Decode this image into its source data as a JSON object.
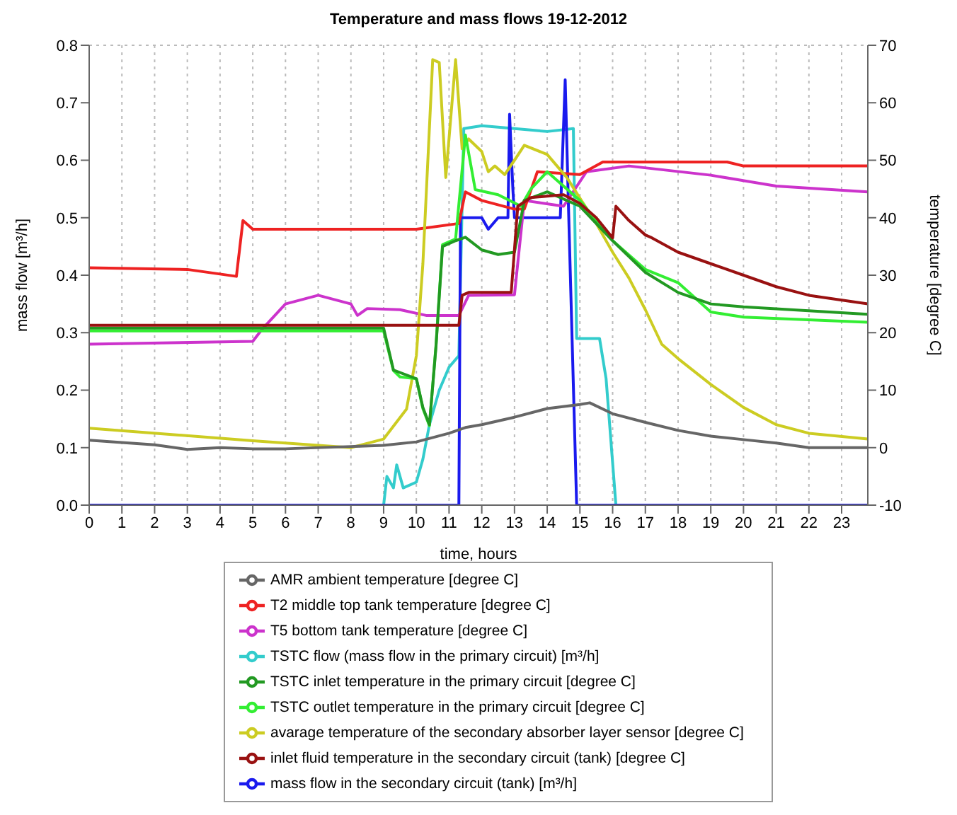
{
  "chart_data": {
    "type": "line",
    "title": "Temperature and mass flows 19-12-2012",
    "xlabel": "time, hours",
    "ylabel": "mass flow [m³/h]",
    "y2label": "temperature [degree C]",
    "xlim": [
      0,
      23.8
    ],
    "xticks": [
      0,
      1,
      2,
      3,
      4,
      5,
      6,
      7,
      8,
      9,
      10,
      11,
      12,
      13,
      14,
      15,
      16,
      17,
      18,
      19,
      20,
      21,
      22,
      23
    ],
    "ylim": [
      0,
      0.8
    ],
    "yticks": [
      {
        "value": 0,
        "label": "0.0"
      },
      0.1,
      0.2,
      0.3,
      0.4,
      0.5,
      0.6,
      0.7,
      0.8
    ],
    "y2lim": [
      -10,
      70
    ],
    "y2ticks": [
      -10,
      0,
      10,
      20,
      30,
      40,
      50,
      60,
      70
    ],
    "grid": true,
    "legend": "bottom",
    "series": [
      {
        "name": "TSTC flow (mass flow in the primary circuit) [m³/h]",
        "color": "#33cccc",
        "axis": "y",
        "x": [
          0,
          9,
          9.1,
          9.3,
          9.4,
          9.6,
          10,
          10.2,
          10.4,
          10.7,
          11,
          11.3,
          11.45,
          12,
          13,
          14,
          14.8,
          14.9,
          15.6,
          15.8,
          16.1,
          23.8
        ],
        "values": [
          0,
          0,
          0.05,
          0.03,
          0.07,
          0.03,
          0.04,
          0.08,
          0.14,
          0.2,
          0.24,
          0.26,
          0.655,
          0.66,
          0.655,
          0.65,
          0.655,
          0.29,
          0.29,
          0.22,
          0,
          0
        ]
      },
      {
        "name": "mass flow in the secondary circuit (tank) [m³/h]",
        "color": "#1a1aee",
        "axis": "y",
        "x": [
          0,
          11.3,
          11.35,
          12,
          12.2,
          12.5,
          12.8,
          12.85,
          12.95,
          13,
          14.4,
          14.55,
          14.65,
          14.9,
          23.8
        ],
        "values": [
          0,
          0,
          0.5,
          0.5,
          0.48,
          0.5,
          0.5,
          0.68,
          0.55,
          0.5,
          0.5,
          0.74,
          0.52,
          0,
          0
        ]
      },
      {
        "name": "T5 bottom tank temperature [degree C]",
        "color": "#cc33cc",
        "axis": "y2",
        "x": [
          0,
          5,
          5.3,
          6,
          7,
          8,
          8.2,
          8.5,
          9.5,
          10.3,
          11.3,
          11.6,
          13,
          13.3,
          14.5,
          15.2,
          16.5,
          19,
          21,
          23.8
        ],
        "values": [
          18,
          18.5,
          20.7,
          25,
          26.5,
          25,
          23,
          24.2,
          24,
          23,
          23,
          26.5,
          26.6,
          43,
          42,
          48,
          49,
          47.4,
          45.5,
          44.5
        ]
      },
      {
        "name": "T2 middle top tank temperature [degree C]",
        "color": "#ee2222",
        "axis": "y2",
        "x": [
          0,
          3,
          4.5,
          4.7,
          5,
          10,
          11.3,
          11.5,
          12,
          13,
          13.3,
          13.7,
          15,
          15.7,
          19.5,
          20,
          23.8
        ],
        "values": [
          31.3,
          31,
          29.8,
          39.5,
          38,
          38,
          39,
          44.5,
          43,
          41.5,
          41.5,
          48,
          47.5,
          49.7,
          49.7,
          49,
          49
        ]
      },
      {
        "name": "avarage temperature of the secondary absorber layer sensor [degree C]",
        "color": "#cccc22",
        "axis": "y2",
        "x": [
          0,
          5,
          8,
          9,
          9.7,
          10,
          10.2,
          10.5,
          10.7,
          10.9,
          11.2,
          11.4,
          11.6,
          12,
          12.2,
          12.4,
          12.7,
          13,
          13.3,
          14,
          14.6,
          15,
          15.5,
          16,
          16.5,
          17,
          17.5,
          18,
          19,
          20,
          21,
          22,
          23.8
        ],
        "values": [
          3.4,
          1.2,
          0,
          1.5,
          6.7,
          16,
          32,
          67.5,
          67,
          47,
          67.5,
          52,
          53.7,
          51.5,
          48,
          49,
          47.5,
          50,
          52.6,
          51,
          47,
          43.4,
          39,
          34,
          29.5,
          24,
          18,
          15.5,
          11,
          7,
          4,
          2.5,
          1.5
        ]
      },
      {
        "name": "TSTC outlet temperature in the primary circuit [degree C]",
        "color": "#33ee33",
        "axis": "y2",
        "x": [
          0,
          9,
          9.3,
          9.5,
          10,
          10.2,
          10.4,
          10.6,
          10.8,
          11.2,
          11.5,
          11.8,
          12.5,
          13.2,
          13.5,
          14,
          15,
          16,
          17,
          18,
          19,
          20,
          23.8
        ],
        "values": [
          20.3,
          20.3,
          13.4,
          12.3,
          12,
          6.8,
          3.8,
          17.8,
          35.3,
          36.3,
          54.4,
          44.9,
          44,
          42,
          45,
          48,
          43,
          36,
          31,
          28.7,
          23.6,
          22.7,
          21.8
        ]
      },
      {
        "name": "TSTC inlet temperature in the primary circuit [degree C]",
        "color": "#229922",
        "axis": "y2",
        "x": [
          0,
          9,
          9.3,
          10,
          10.2,
          10.4,
          10.6,
          10.8,
          11.2,
          11.5,
          12,
          12.5,
          13,
          13.3,
          14,
          15,
          16,
          17,
          18,
          19,
          20,
          23.8
        ],
        "values": [
          20.8,
          20.8,
          13.5,
          12,
          7,
          4,
          17.5,
          35,
          36,
          36.6,
          34.4,
          33.6,
          34,
          43,
          44.5,
          42,
          36,
          30.5,
          27,
          25,
          24.5,
          23.2
        ]
      },
      {
        "name": "AMR ambient temperature [degree C]",
        "color": "#666666",
        "axis": "y2",
        "x": [
          0,
          2,
          3,
          4,
          5,
          6,
          8,
          9,
          10,
          11,
          11.5,
          12,
          13,
          14,
          15,
          15.3,
          16,
          17,
          18,
          19,
          20,
          21,
          22,
          23.8
        ],
        "values": [
          1.3,
          0.5,
          -0.3,
          0,
          -0.2,
          -0.2,
          0.2,
          0.4,
          1,
          2.5,
          3.5,
          4,
          5.3,
          6.8,
          7.5,
          7.8,
          5.9,
          4.4,
          3,
          2,
          1.4,
          0.8,
          0,
          0
        ]
      },
      {
        "name": "inlet fluid temperature in the secondary circuit (tank) [degree C]",
        "color": "#991111",
        "axis": "y2",
        "x": [
          0,
          11.3,
          11.4,
          11.6,
          12.9,
          13.1,
          13.5,
          14.5,
          15,
          15.5,
          16,
          16.1,
          16.5,
          17,
          17.2,
          18,
          19,
          20,
          21,
          22,
          23.8
        ],
        "values": [
          21.3,
          21.3,
          26.5,
          27,
          27,
          42,
          43.5,
          44,
          42.5,
          40,
          36.5,
          42,
          39.5,
          37,
          36.5,
          34,
          32,
          30,
          28,
          26.5,
          25
        ]
      }
    ]
  }
}
